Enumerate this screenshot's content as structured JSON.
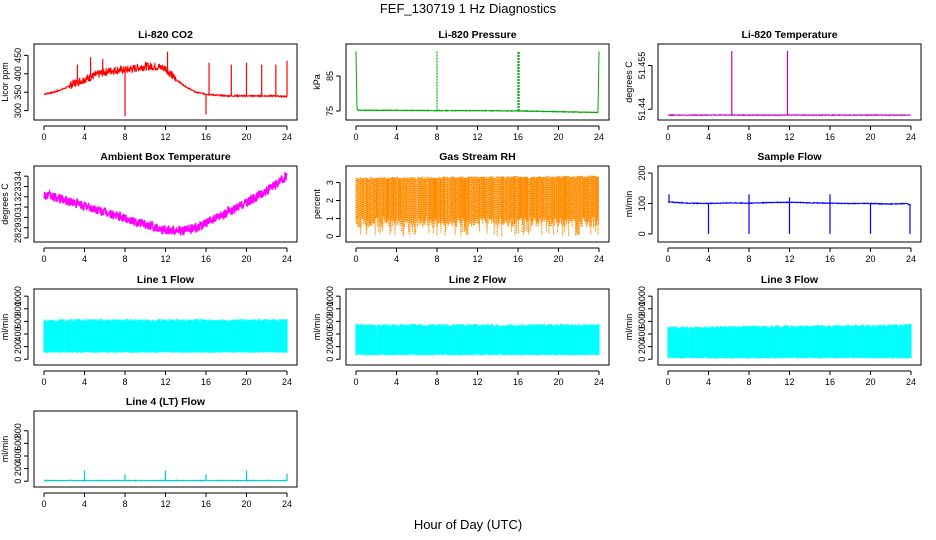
{
  "figure": {
    "title": "FEF_130719  1 Hz Diagnostics",
    "xlabel": "Hour of Day (UTC)"
  },
  "chart_data": [
    {
      "type": "line",
      "title": "Li-820 CO2",
      "ylabel": "Licor ppm",
      "color": "#ff0000",
      "xlim": [
        0,
        24
      ],
      "ylim": [
        280,
        470
      ],
      "xticks": [
        0,
        4,
        8,
        12,
        16,
        20,
        24
      ],
      "yticks": [
        300,
        350,
        400,
        450
      ],
      "x": [
        0,
        1,
        2,
        3,
        4,
        5,
        6,
        7,
        8,
        9,
        10,
        11,
        12,
        13,
        14,
        15,
        16,
        17,
        18,
        19,
        20,
        21,
        22,
        23,
        24
      ],
      "y": [
        345,
        350,
        360,
        375,
        385,
        395,
        405,
        410,
        410,
        415,
        420,
        420,
        415,
        385,
        365,
        350,
        345,
        342,
        340,
        340,
        340,
        340,
        340,
        340,
        338
      ],
      "spikes": [
        [
          3.3,
          425
        ],
        [
          4.6,
          445
        ],
        [
          5.8,
          440
        ],
        [
          8.0,
          285
        ],
        [
          12.2,
          460
        ],
        [
          16.0,
          290
        ],
        [
          16.3,
          430
        ],
        [
          18.5,
          425
        ],
        [
          20.0,
          430
        ],
        [
          21.5,
          425
        ],
        [
          22.9,
          425
        ],
        [
          24.0,
          435
        ]
      ]
    },
    {
      "type": "line",
      "title": "Li-820 Pressure",
      "ylabel": "kPa",
      "color": "#00aa00",
      "xlim": [
        0,
        24
      ],
      "ylim": [
        73,
        93
      ],
      "xticks": [
        0,
        4,
        8,
        12,
        16,
        20,
        24
      ],
      "yticks": [
        75,
        85
      ],
      "x": [
        0,
        0.1,
        0.3,
        4,
        8,
        12,
        16,
        20,
        23.9,
        24
      ],
      "y": [
        92,
        75.5,
        75.2,
        75.2,
        75.1,
        75.1,
        75.0,
        74.8,
        74.6,
        92
      ],
      "spikes": [
        [
          8.0,
          92
        ],
        [
          16.0,
          92
        ],
        [
          16.1,
          92
        ]
      ]
    },
    {
      "type": "line",
      "title": "Li-820 Temperature",
      "ylabel": "degrees C",
      "color": "#cc00cc",
      "xlim": [
        0,
        24
      ],
      "ylim": [
        51.437,
        51.461
      ],
      "xticks": [
        0,
        4,
        8,
        12,
        16,
        20,
        24
      ],
      "yticks": [
        51.44,
        51.455
      ],
      "x": [
        0,
        24
      ],
      "y": [
        51.438,
        51.438
      ],
      "spikes": [
        [
          6.3,
          51.46
        ],
        [
          11.8,
          51.46
        ]
      ]
    },
    {
      "type": "line",
      "title": "Ambient Box Temperature",
      "ylabel": "degrees C",
      "color": "#ff00ff",
      "xlim": [
        0,
        24
      ],
      "ylim": [
        27.8,
        34.6
      ],
      "xticks": [
        0,
        4,
        8,
        12,
        16,
        20,
        24
      ],
      "yticks": [
        28,
        29,
        30,
        31,
        32,
        33,
        34
      ],
      "x": [
        0,
        2,
        4,
        6,
        8,
        10,
        12,
        13.5,
        15,
        17,
        19,
        21,
        22.5,
        24
      ],
      "y": [
        32.2,
        31.7,
        31.1,
        30.5,
        29.9,
        29.3,
        28.8,
        28.7,
        29.0,
        29.9,
        30.9,
        32.0,
        32.9,
        34.0
      ],
      "band": 0.9
    },
    {
      "type": "line",
      "title": "Gas Stream RH",
      "ylabel": "percent",
      "color": "#ff8c00",
      "xlim": [
        0,
        24
      ],
      "ylim": [
        -0.2,
        3.7
      ],
      "xticks": [
        0,
        4,
        8,
        12,
        16,
        20,
        24
      ],
      "yticks": [
        0,
        1,
        2,
        3
      ],
      "x": [
        0,
        24
      ],
      "y": [
        3.3,
        3.4
      ],
      "band_low": 0.5
    },
    {
      "type": "line",
      "title": "Sample Flow",
      "ylabel": "ml/min",
      "color": "#0000ff",
      "xlim": [
        0,
        24
      ],
      "ylim": [
        -20,
        210
      ],
      "xticks": [
        0,
        4,
        8,
        12,
        16,
        20,
        24
      ],
      "yticks": [
        0,
        100,
        200
      ],
      "x": [
        0,
        2,
        4,
        6,
        8,
        10,
        12,
        14,
        16,
        18,
        20,
        22,
        23.5,
        24
      ],
      "y": [
        105,
        101,
        100,
        102,
        101,
        103,
        104,
        102,
        101,
        100,
        100,
        98,
        100,
        95
      ],
      "spikes": [
        [
          0.1,
          130
        ],
        [
          4.0,
          0
        ],
        [
          8.0,
          0
        ],
        [
          8.0,
          130
        ],
        [
          12.0,
          0
        ],
        [
          12.0,
          120
        ],
        [
          16.0,
          0
        ],
        [
          16.0,
          130
        ],
        [
          20.0,
          0
        ],
        [
          23.9,
          0
        ]
      ]
    },
    {
      "type": "area",
      "title": "Line 1 Flow",
      "ylabel": "ml/min",
      "color": "#00ffff",
      "xlim": [
        0,
        24
      ],
      "ylim": [
        -60,
        1050
      ],
      "xticks": [
        0,
        4,
        8,
        12,
        16,
        20,
        24
      ],
      "yticks": [
        0,
        200,
        400,
        600,
        800,
        1000
      ],
      "x": [
        0,
        24
      ],
      "y_high": [
        640,
        640
      ],
      "y_low": [
        100,
        100
      ]
    },
    {
      "type": "area",
      "title": "Line 2 Flow",
      "ylabel": "ml/min",
      "color": "#00ffff",
      "xlim": [
        0,
        24
      ],
      "ylim": [
        -60,
        1050
      ],
      "xticks": [
        0,
        4,
        8,
        12,
        16,
        20,
        24
      ],
      "yticks": [
        0,
        200,
        400,
        600,
        800,
        1000
      ],
      "x": [
        0,
        24
      ],
      "y_high": [
        560,
        560
      ],
      "y_low": [
        60,
        60
      ]
    },
    {
      "type": "area",
      "title": "Line 3 Flow",
      "ylabel": "ml/min",
      "color": "#00ffff",
      "xlim": [
        0,
        24
      ],
      "ylim": [
        -60,
        1050
      ],
      "xticks": [
        0,
        4,
        8,
        12,
        16,
        20,
        24
      ],
      "yticks": [
        0,
        200,
        400,
        600,
        800,
        1000
      ],
      "x": [
        0,
        24
      ],
      "y_high": [
        520,
        560
      ],
      "y_low": [
        10,
        10
      ]
    },
    {
      "type": "line",
      "title": "Line 4 (LT) Flow",
      "ylabel": "ml/min",
      "color": "#00cccc",
      "xlim": [
        0,
        24
      ],
      "ylim": [
        -60,
        1050
      ],
      "xticks": [
        0,
        4,
        8,
        12,
        16,
        20,
        24
      ],
      "yticks": [
        0,
        200,
        400,
        600,
        800
      ],
      "x": [
        0,
        24
      ],
      "y": [
        10,
        10
      ],
      "spikes": [
        [
          4.0,
          170
        ],
        [
          8.0,
          110
        ],
        [
          12.0,
          170
        ],
        [
          16.0,
          110
        ],
        [
          20.0,
          170
        ],
        [
          24.0,
          120
        ]
      ]
    }
  ]
}
